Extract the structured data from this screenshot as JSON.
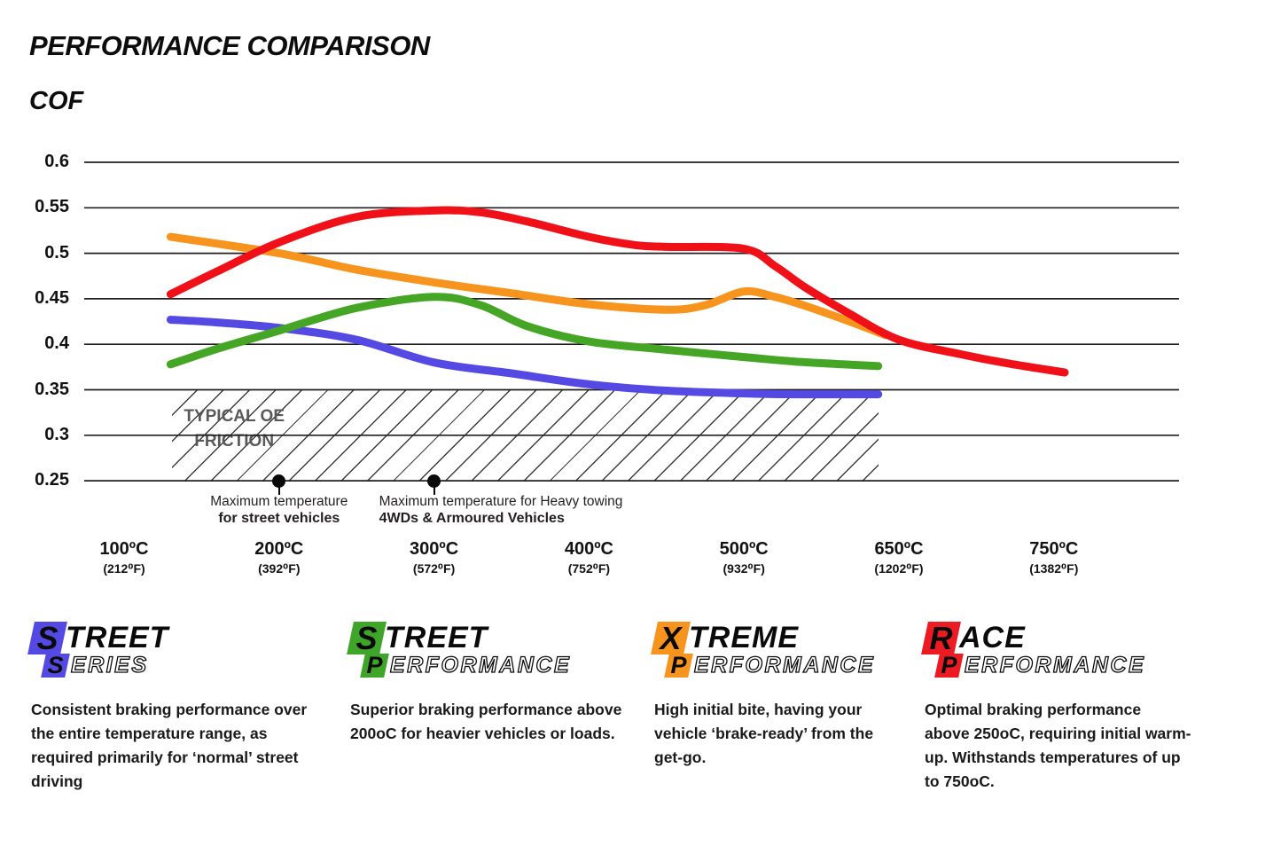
{
  "header": {
    "title": "PERFORMANCE COMPARISON",
    "y_axis_label": "COF"
  },
  "chart_data": {
    "type": "line",
    "title": "PERFORMANCE COMPARISON",
    "ylabel": "COF",
    "ylim": [
      0.25,
      0.6
    ],
    "grid": "horizontal",
    "y_ticks": [
      "0.6",
      "0.55",
      "0.5",
      "0.45",
      "0.4",
      "0.35",
      "0.3",
      "0.25"
    ],
    "x_ticks": [
      {
        "t": 100,
        "c": "100ºC",
        "f": "(212⁰F)"
      },
      {
        "t": 200,
        "c": "200ºC",
        "f": "(392⁰F)"
      },
      {
        "t": 300,
        "c": "300ºC",
        "f": "(572⁰F)"
      },
      {
        "t": 400,
        "c": "400ºC",
        "f": "(752⁰F)"
      },
      {
        "t": 500,
        "c": "500ºC",
        "f": "(932⁰F)"
      },
      {
        "t": 650,
        "c": "650ºC",
        "f": "(1202⁰F)"
      },
      {
        "t": 750,
        "c": "750ºC",
        "f": "(1382⁰F)"
      }
    ],
    "series": [
      {
        "name": "Street Series",
        "color": "#544AE3",
        "points": [
          [
            130,
            0.427
          ],
          [
            160,
            0.424
          ],
          [
            200,
            0.418
          ],
          [
            250,
            0.405
          ],
          [
            300,
            0.38
          ],
          [
            350,
            0.368
          ],
          [
            400,
            0.356
          ],
          [
            450,
            0.349
          ],
          [
            500,
            0.346
          ],
          [
            550,
            0.345
          ],
          [
            630,
            0.345
          ]
        ]
      },
      {
        "name": "Street Performance",
        "color": "#45A525",
        "points": [
          [
            130,
            0.378
          ],
          [
            160,
            0.395
          ],
          [
            200,
            0.415
          ],
          [
            250,
            0.44
          ],
          [
            300,
            0.452
          ],
          [
            330,
            0.443
          ],
          [
            360,
            0.42
          ],
          [
            400,
            0.403
          ],
          [
            450,
            0.394
          ],
          [
            500,
            0.386
          ],
          [
            550,
            0.381
          ],
          [
            630,
            0.376
          ]
        ]
      },
      {
        "name": "Xtreme Performance",
        "color": "#F7941E",
        "points": [
          [
            130,
            0.518
          ],
          [
            200,
            0.5
          ],
          [
            250,
            0.482
          ],
          [
            300,
            0.468
          ],
          [
            350,
            0.456
          ],
          [
            400,
            0.444
          ],
          [
            450,
            0.438
          ],
          [
            475,
            0.443
          ],
          [
            500,
            0.458
          ],
          [
            530,
            0.452
          ],
          [
            560,
            0.442
          ],
          [
            600,
            0.426
          ],
          [
            637,
            0.41
          ]
        ]
      },
      {
        "name": "Race Performance",
        "color": "#F01018",
        "points": [
          [
            130,
            0.455
          ],
          [
            160,
            0.48
          ],
          [
            200,
            0.512
          ],
          [
            250,
            0.54
          ],
          [
            300,
            0.547
          ],
          [
            330,
            0.545
          ],
          [
            360,
            0.535
          ],
          [
            400,
            0.518
          ],
          [
            430,
            0.509
          ],
          [
            450,
            0.507
          ],
          [
            500,
            0.505
          ],
          [
            530,
            0.486
          ],
          [
            560,
            0.462
          ],
          [
            600,
            0.435
          ],
          [
            650,
            0.405
          ],
          [
            690,
            0.389
          ],
          [
            720,
            0.379
          ],
          [
            757,
            0.369
          ]
        ]
      }
    ],
    "oe_friction_band": {
      "label": "TYPICAL OE\nFRICTION",
      "cof_from": 0.25,
      "cof_to": 0.35,
      "t_from": 131,
      "t_to": 630
    },
    "markers": [
      {
        "t": 200,
        "line1": "Maximum temperature",
        "line2": "for street vehicles",
        "align": "center"
      },
      {
        "t": 300,
        "line1": "Maximum temperature for Heavy towing",
        "line2": "4WDs & Armoured Vehicles",
        "align": "left"
      }
    ]
  },
  "legend": [
    {
      "name": "Street Series",
      "color": "#544AE3",
      "word1_initial": "S",
      "word1_rest": "TREET",
      "word2_initial": "S",
      "word2_rest": "ERIES",
      "description": "Consistent braking performance over\nthe entire temperature range, as\nrequired primarily for ‘normal’ street\ndriving"
    },
    {
      "name": "Street Performance",
      "color": "#3FA52A",
      "word1_initial": "S",
      "word1_rest": "TREET",
      "word2_initial": "P",
      "word2_rest": "ERFORMANCE",
      "description": "Superior braking performance above\n200oC for heavier vehicles or loads."
    },
    {
      "name": "Xtreme Performance",
      "color": "#F7941E",
      "word1_initial": "X",
      "word1_rest": "TREME",
      "word2_initial": "P",
      "word2_rest": "ERFORMANCE",
      "description": "High initial bite, having your\nvehicle ‘brake-ready’ from the\nget-go."
    },
    {
      "name": "Race Performance",
      "color": "#EC1B23",
      "word1_initial": "R",
      "word1_rest": "ACE",
      "word2_initial": "P",
      "word2_rest": "ERFORMANCE",
      "description": "Optimal braking performance\nabove 250oC, requiring initial warm-\nup. Withstands temperatures of up\nto 750oC."
    }
  ]
}
